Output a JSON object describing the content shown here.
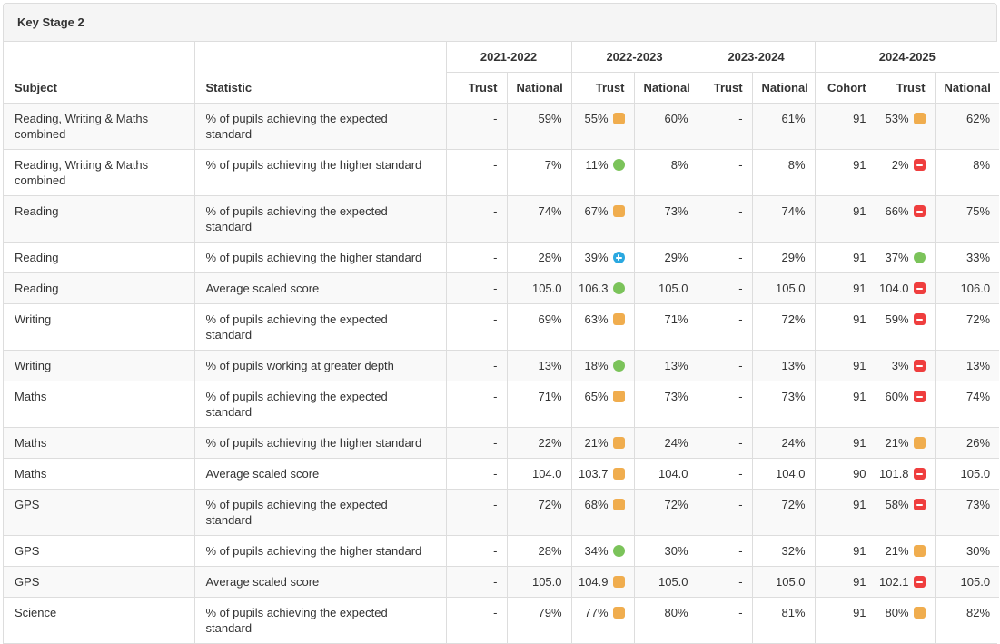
{
  "panel": {
    "title": "Key Stage 2"
  },
  "table": {
    "subject_header": "Subject",
    "statistic_header": "Statistic",
    "year_groups": [
      {
        "label": "2021-2022",
        "columns": [
          "Trust",
          "National"
        ]
      },
      {
        "label": "2022-2023",
        "columns": [
          "Trust",
          "National"
        ]
      },
      {
        "label": "2023-2024",
        "columns": [
          "Trust",
          "National"
        ]
      },
      {
        "label": "2024-2025",
        "columns": [
          "Cohort",
          "Trust",
          "National"
        ]
      }
    ],
    "icons": {
      "orange-square": {
        "shape": "square",
        "color": "#F0AD4E",
        "glyph": "none"
      },
      "green-circle": {
        "shape": "circle",
        "color": "#7BC35A",
        "glyph": "none"
      },
      "red-square-minus": {
        "shape": "square",
        "color": "#EF3E3E",
        "glyph": "minus"
      },
      "blue-circle-plus": {
        "shape": "circle",
        "color": "#2AA8E0",
        "glyph": "plus"
      }
    },
    "rows": [
      {
        "subject": "Reading, Writing & Maths combined",
        "statistic": "% of pupils achieving the expected standard",
        "cells": [
          {
            "value": "-"
          },
          {
            "value": "59%"
          },
          {
            "value": "55%",
            "icon": "orange-square"
          },
          {
            "value": "60%"
          },
          {
            "value": "-"
          },
          {
            "value": "61%"
          },
          {
            "value": "91"
          },
          {
            "value": "53%",
            "icon": "orange-square"
          },
          {
            "value": "62%"
          }
        ]
      },
      {
        "subject": "Reading, Writing & Maths combined",
        "statistic": "% of pupils achieving the higher standard",
        "cells": [
          {
            "value": "-"
          },
          {
            "value": "7%"
          },
          {
            "value": "11%",
            "icon": "green-circle"
          },
          {
            "value": "8%"
          },
          {
            "value": "-"
          },
          {
            "value": "8%"
          },
          {
            "value": "91"
          },
          {
            "value": "2%",
            "icon": "red-square-minus"
          },
          {
            "value": "8%"
          }
        ]
      },
      {
        "subject": "Reading",
        "statistic": "% of pupils achieving the expected standard",
        "cells": [
          {
            "value": "-"
          },
          {
            "value": "74%"
          },
          {
            "value": "67%",
            "icon": "orange-square"
          },
          {
            "value": "73%"
          },
          {
            "value": "-"
          },
          {
            "value": "74%"
          },
          {
            "value": "91"
          },
          {
            "value": "66%",
            "icon": "red-square-minus"
          },
          {
            "value": "75%"
          }
        ]
      },
      {
        "subject": "Reading",
        "statistic": "% of pupils achieving the higher standard",
        "cells": [
          {
            "value": "-"
          },
          {
            "value": "28%"
          },
          {
            "value": "39%",
            "icon": "blue-circle-plus"
          },
          {
            "value": "29%"
          },
          {
            "value": "-"
          },
          {
            "value": "29%"
          },
          {
            "value": "91"
          },
          {
            "value": "37%",
            "icon": "green-circle"
          },
          {
            "value": "33%"
          }
        ]
      },
      {
        "subject": "Reading",
        "statistic": "Average scaled score",
        "cells": [
          {
            "value": "-"
          },
          {
            "value": "105.0"
          },
          {
            "value": "106.3",
            "icon": "green-circle"
          },
          {
            "value": "105.0"
          },
          {
            "value": "-"
          },
          {
            "value": "105.0"
          },
          {
            "value": "91"
          },
          {
            "value": "104.0",
            "icon": "red-square-minus"
          },
          {
            "value": "106.0"
          }
        ]
      },
      {
        "subject": "Writing",
        "statistic": "% of pupils achieving the expected standard",
        "cells": [
          {
            "value": "-"
          },
          {
            "value": "69%"
          },
          {
            "value": "63%",
            "icon": "orange-square"
          },
          {
            "value": "71%"
          },
          {
            "value": "-"
          },
          {
            "value": "72%"
          },
          {
            "value": "91"
          },
          {
            "value": "59%",
            "icon": "red-square-minus"
          },
          {
            "value": "72%"
          }
        ]
      },
      {
        "subject": "Writing",
        "statistic": "% of pupils working at greater depth",
        "cells": [
          {
            "value": "-"
          },
          {
            "value": "13%"
          },
          {
            "value": "18%",
            "icon": "green-circle"
          },
          {
            "value": "13%"
          },
          {
            "value": "-"
          },
          {
            "value": "13%"
          },
          {
            "value": "91"
          },
          {
            "value": "3%",
            "icon": "red-square-minus"
          },
          {
            "value": "13%"
          }
        ]
      },
      {
        "subject": "Maths",
        "statistic": "% of pupils achieving the expected standard",
        "cells": [
          {
            "value": "-"
          },
          {
            "value": "71%"
          },
          {
            "value": "65%",
            "icon": "orange-square"
          },
          {
            "value": "73%"
          },
          {
            "value": "-"
          },
          {
            "value": "73%"
          },
          {
            "value": "91"
          },
          {
            "value": "60%",
            "icon": "red-square-minus"
          },
          {
            "value": "74%"
          }
        ]
      },
      {
        "subject": "Maths",
        "statistic": "% of pupils achieving the higher standard",
        "cells": [
          {
            "value": "-"
          },
          {
            "value": "22%"
          },
          {
            "value": "21%",
            "icon": "orange-square"
          },
          {
            "value": "24%"
          },
          {
            "value": "-"
          },
          {
            "value": "24%"
          },
          {
            "value": "91"
          },
          {
            "value": "21%",
            "icon": "orange-square"
          },
          {
            "value": "26%"
          }
        ]
      },
      {
        "subject": "Maths",
        "statistic": "Average scaled score",
        "cells": [
          {
            "value": "-"
          },
          {
            "value": "104.0"
          },
          {
            "value": "103.7",
            "icon": "orange-square"
          },
          {
            "value": "104.0"
          },
          {
            "value": "-"
          },
          {
            "value": "104.0"
          },
          {
            "value": "90"
          },
          {
            "value": "101.8",
            "icon": "red-square-minus"
          },
          {
            "value": "105.0"
          }
        ]
      },
      {
        "subject": "GPS",
        "statistic": "% of pupils achieving the expected standard",
        "cells": [
          {
            "value": "-"
          },
          {
            "value": "72%"
          },
          {
            "value": "68%",
            "icon": "orange-square"
          },
          {
            "value": "72%"
          },
          {
            "value": "-"
          },
          {
            "value": "72%"
          },
          {
            "value": "91"
          },
          {
            "value": "58%",
            "icon": "red-square-minus"
          },
          {
            "value": "73%"
          }
        ]
      },
      {
        "subject": "GPS",
        "statistic": "% of pupils achieving the higher standard",
        "cells": [
          {
            "value": "-"
          },
          {
            "value": "28%"
          },
          {
            "value": "34%",
            "icon": "green-circle"
          },
          {
            "value": "30%"
          },
          {
            "value": "-"
          },
          {
            "value": "32%"
          },
          {
            "value": "91"
          },
          {
            "value": "21%",
            "icon": "orange-square"
          },
          {
            "value": "30%"
          }
        ]
      },
      {
        "subject": "GPS",
        "statistic": "Average scaled score",
        "cells": [
          {
            "value": "-"
          },
          {
            "value": "105.0"
          },
          {
            "value": "104.9",
            "icon": "orange-square"
          },
          {
            "value": "105.0"
          },
          {
            "value": "-"
          },
          {
            "value": "105.0"
          },
          {
            "value": "91"
          },
          {
            "value": "102.1",
            "icon": "red-square-minus"
          },
          {
            "value": "105.0"
          }
        ]
      },
      {
        "subject": "Science",
        "statistic": "% of pupils achieving the expected standard",
        "cells": [
          {
            "value": "-"
          },
          {
            "value": "79%"
          },
          {
            "value": "77%",
            "icon": "orange-square"
          },
          {
            "value": "80%"
          },
          {
            "value": "-"
          },
          {
            "value": "81%"
          },
          {
            "value": "91"
          },
          {
            "value": "80%",
            "icon": "orange-square"
          },
          {
            "value": "82%"
          }
        ]
      }
    ]
  }
}
